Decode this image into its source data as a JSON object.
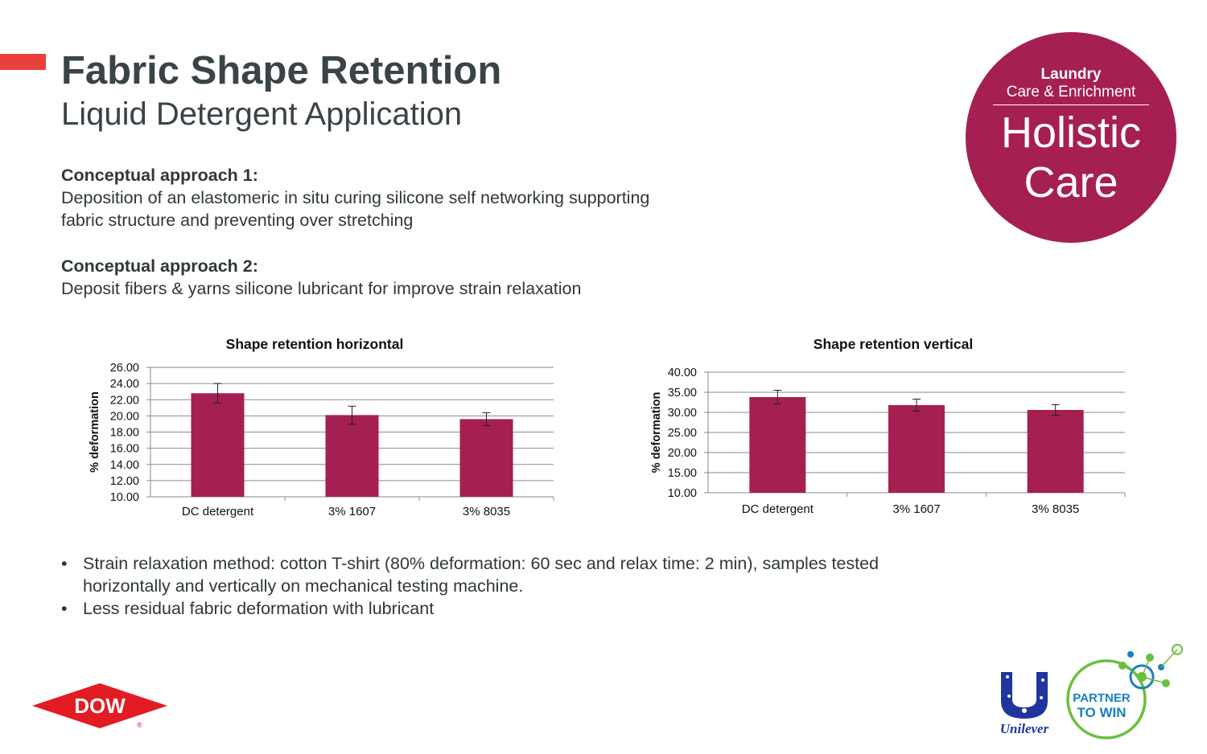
{
  "header": {
    "title": "Fabric Shape Retention",
    "subtitle": "Liquid Detergent Application"
  },
  "approaches": [
    {
      "heading": "Conceptual approach 1:",
      "text": "Deposition of an elastomeric in situ curing silicone self networking supporting fabric structure and preventing over stretching"
    },
    {
      "heading": "Conceptual approach 2:",
      "text": "Deposit fibers & yarns silicone lubricant for improve strain relaxation"
    }
  ],
  "badge": {
    "line1": "Laundry",
    "line2": "Care & Enrichment",
    "line3": "Holistic",
    "line4": "Care",
    "color": "#a51f52"
  },
  "chart_data": [
    {
      "type": "bar",
      "title": "Shape retention horizontal",
      "ylabel": "% deformation",
      "xlabel": "",
      "categories": [
        "DC detergent",
        "3% 1607",
        "3% 8035"
      ],
      "values": [
        22.8,
        20.1,
        19.6
      ],
      "errors": [
        1.2,
        1.1,
        0.8
      ],
      "ylim": [
        10,
        26
      ],
      "yticks": [
        "10.00",
        "12.00",
        "14.00",
        "16.00",
        "18.00",
        "20.00",
        "22.00",
        "24.00",
        "26.00"
      ],
      "grid": true,
      "legend": "none",
      "bar_color": "#a51f52"
    },
    {
      "type": "bar",
      "title": "Shape retention vertical",
      "ylabel": "% deformation",
      "xlabel": "",
      "categories": [
        "DC detergent",
        "3% 1607",
        "3% 8035"
      ],
      "values": [
        33.8,
        31.8,
        30.6
      ],
      "errors": [
        1.7,
        1.5,
        1.3
      ],
      "ylim": [
        10,
        40
      ],
      "yticks": [
        "10.00",
        "15.00",
        "20.00",
        "25.00",
        "30.00",
        "35.00",
        "40.00"
      ],
      "grid": true,
      "legend": "none",
      "bar_color": "#a51f52"
    }
  ],
  "bullets": [
    "Strain relaxation method: cotton T-shirt (80% deformation: 60 sec and relax time: 2 min), samples tested horizontally and vertically on mechanical testing machine.",
    "Less residual fabric deformation with lubricant"
  ],
  "bullet_glyph": "•",
  "logos": {
    "dow": "DOW",
    "dow_mark": "®",
    "unilever": "Unilever",
    "partner_line1": "PARTNER",
    "partner_line2": "TO WIN"
  },
  "colors": {
    "accent": "#e8413b",
    "brand_magenta": "#a51f52",
    "dow_red": "#e31b23",
    "unilever_blue": "#1f36a0",
    "partner_blue": "#1a7fc1",
    "partner_green": "#6abf3f"
  }
}
